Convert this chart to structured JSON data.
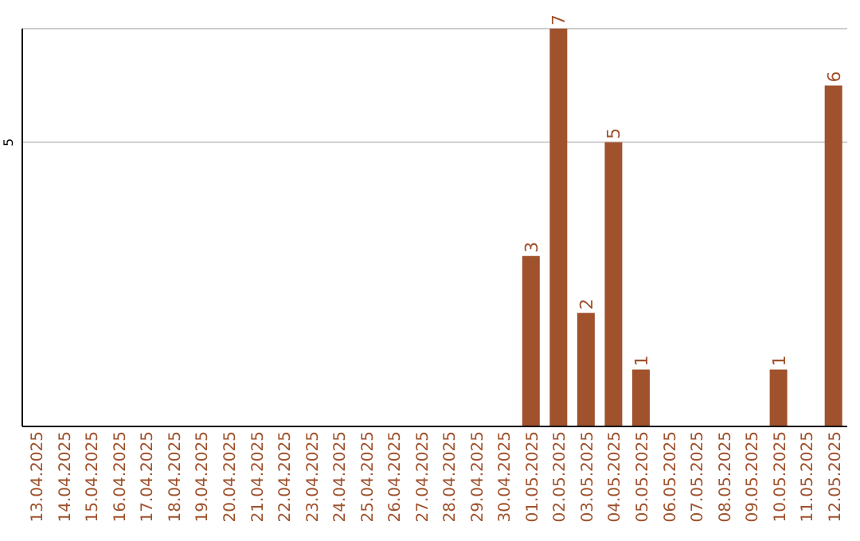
{
  "chart_data": {
    "type": "bar",
    "categories": [
      "13.04.2025",
      "14.04.2025",
      "15.04.2025",
      "16.04.2025",
      "17.04.2025",
      "18.04.2025",
      "19.04.2025",
      "20.04.2025",
      "21.04.2025",
      "22.04.2025",
      "23.04.2025",
      "24.04.2025",
      "25.04.2025",
      "26.04.2025",
      "27.04.2025",
      "28.04.2025",
      "29.04.2025",
      "30.04.2025",
      "01.05.2025",
      "02.05.2025",
      "03.05.2025",
      "04.05.2025",
      "05.05.2025",
      "06.05.2025",
      "07.05.2025",
      "08.05.2025",
      "09.05.2025",
      "10.05.2025",
      "11.05.2025",
      "12.05.2025"
    ],
    "values": [
      null,
      null,
      null,
      null,
      null,
      null,
      null,
      null,
      null,
      null,
      null,
      null,
      null,
      null,
      null,
      null,
      null,
      null,
      3,
      7,
      2,
      5,
      1,
      null,
      null,
      null,
      null,
      1,
      null,
      6
    ],
    "color": "#a0522d",
    "ylim": [
      0,
      7
    ],
    "yticks": [
      5
    ],
    "grid": "y",
    "data_labels": true
  }
}
